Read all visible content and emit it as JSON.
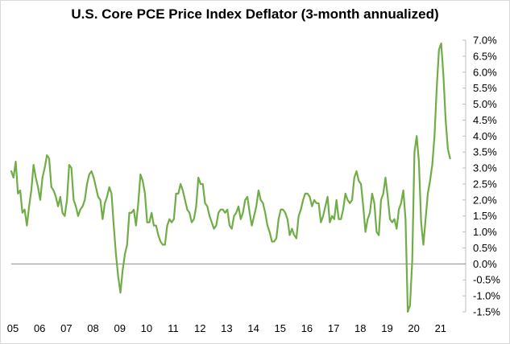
{
  "chart_data": {
    "type": "line",
    "title": "U.S. Core PCE Price Index Deflator (3-month annualized)",
    "xlabel": "",
    "ylabel": "",
    "xlim": [
      2005.0,
      2022.0
    ],
    "ylim": [
      -1.5,
      7.0
    ],
    "y_ticks": [
      -1.5,
      -1.0,
      -0.5,
      0.0,
      0.5,
      1.0,
      1.5,
      2.0,
      2.5,
      3.0,
      3.5,
      4.0,
      4.5,
      5.0,
      5.5,
      6.0,
      6.5,
      7.0
    ],
    "y_tick_labels": [
      "-1.5%",
      "-1.0%",
      "-0.5%",
      "0.0%",
      "0.5%",
      "1.0%",
      "1.5%",
      "2.0%",
      "2.5%",
      "3.0%",
      "3.5%",
      "4.0%",
      "4.5%",
      "5.0%",
      "5.5%",
      "6.0%",
      "6.5%",
      "7.0%"
    ],
    "x_tick_labels": [
      "05",
      "06",
      "07",
      "08",
      "09",
      "10",
      "11",
      "12",
      "13",
      "14",
      "15",
      "16",
      "17",
      "18",
      "19",
      "20",
      "21"
    ],
    "y_axis_position": "right",
    "grid": false,
    "line_color": "#70ad47",
    "series": [
      {
        "values": [
          2.9,
          2.7,
          3.2,
          2.2,
          2.3,
          1.6,
          1.7,
          1.2,
          1.8,
          2.3,
          3.1,
          2.7,
          2.4,
          2.0,
          2.7,
          3.0,
          3.4,
          3.3,
          2.4,
          2.3,
          2.1,
          1.8,
          2.1,
          1.6,
          1.5,
          2.0,
          3.1,
          3.0,
          2.0,
          1.8,
          1.5,
          1.7,
          1.8,
          2.0,
          2.5,
          2.8,
          2.9,
          2.7,
          2.4,
          2.1,
          2.0,
          1.4,
          1.9,
          2.1,
          2.4,
          2.2,
          1.2,
          0.3,
          -0.4,
          -0.9,
          -0.2,
          0.3,
          0.6,
          1.6,
          1.6,
          1.7,
          1.2,
          1.9,
          2.8,
          2.6,
          2.2,
          1.3,
          1.3,
          1.6,
          1.2,
          1.2,
          0.9,
          0.7,
          0.6,
          0.6,
          1.2,
          1.4,
          1.3,
          1.4,
          2.2,
          2.2,
          2.5,
          2.3,
          2.0,
          1.7,
          1.6,
          1.3,
          1.4,
          1.8,
          2.7,
          2.5,
          2.5,
          1.9,
          1.8,
          1.5,
          1.3,
          1.1,
          1.2,
          1.6,
          1.7,
          1.7,
          1.6,
          1.7,
          1.2,
          1.1,
          1.5,
          1.6,
          1.8,
          1.4,
          1.6,
          2.0,
          2.1,
          1.6,
          1.2,
          1.5,
          1.8,
          2.3,
          2.0,
          1.9,
          1.6,
          1.2,
          1.0,
          0.7,
          0.7,
          0.8,
          1.4,
          1.7,
          1.7,
          1.6,
          1.4,
          0.9,
          1.1,
          0.9,
          0.8,
          1.5,
          1.7,
          2.0,
          2.2,
          2.2,
          2.1,
          1.8,
          2.0,
          1.9,
          1.9,
          1.3,
          1.5,
          1.8,
          2.1,
          1.3,
          1.5,
          1.4,
          2.0,
          1.4,
          1.4,
          1.7,
          2.2,
          2.0,
          1.9,
          2.0,
          2.7,
          2.9,
          2.6,
          2.5,
          1.8,
          1.0,
          1.4,
          1.6,
          2.2,
          1.9,
          1.0,
          0.9,
          2.0,
          2.2,
          2.7,
          2.1,
          1.4,
          1.3,
          1.4,
          1.1,
          1.7,
          1.9,
          2.3,
          1.4,
          -1.5,
          -1.3,
          0.1,
          3.5,
          4.0,
          3.2,
          1.3,
          0.6,
          1.4,
          2.2,
          2.6,
          3.1,
          4.0,
          5.5,
          6.7,
          6.9,
          5.9,
          4.5,
          3.6,
          3.3
        ]
      }
    ]
  }
}
